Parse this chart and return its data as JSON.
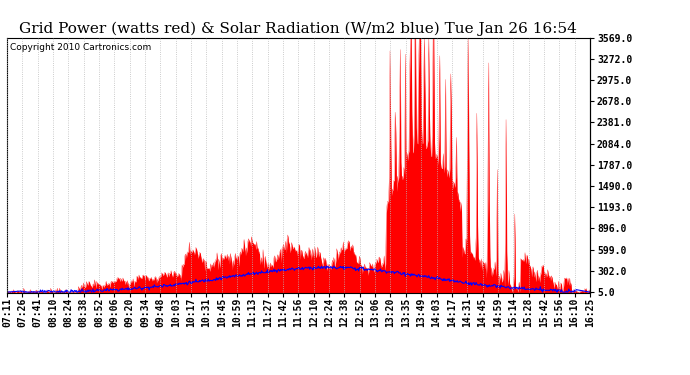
{
  "title": "Grid Power (watts red) & Solar Radiation (W/m2 blue) Tue Jan 26 16:54",
  "copyright": "Copyright 2010 Cartronics.com",
  "yticks": [
    5.0,
    302.0,
    599.0,
    896.0,
    1193.0,
    1490.0,
    1787.0,
    2084.0,
    2381.0,
    2678.0,
    2975.0,
    3272.0,
    3569.0
  ],
  "ymin": 0.0,
  "ymax": 3569.0,
  "xtick_labels": [
    "07:11",
    "07:26",
    "07:41",
    "08:10",
    "08:24",
    "08:38",
    "08:52",
    "09:06",
    "09:20",
    "09:34",
    "09:48",
    "10:03",
    "10:17",
    "10:31",
    "10:45",
    "10:59",
    "11:13",
    "11:27",
    "11:42",
    "11:56",
    "12:10",
    "12:24",
    "12:38",
    "12:52",
    "13:06",
    "13:20",
    "13:35",
    "13:49",
    "14:03",
    "14:17",
    "14:31",
    "14:45",
    "14:59",
    "15:14",
    "15:28",
    "15:42",
    "15:56",
    "16:10",
    "16:25"
  ],
  "bg_color": "#ffffff",
  "grid_color": "#bbbbbb",
  "red_color": "#ff0000",
  "blue_color": "#0000ff",
  "title_fontsize": 11,
  "copyright_fontsize": 6.5,
  "tick_fontsize": 7
}
